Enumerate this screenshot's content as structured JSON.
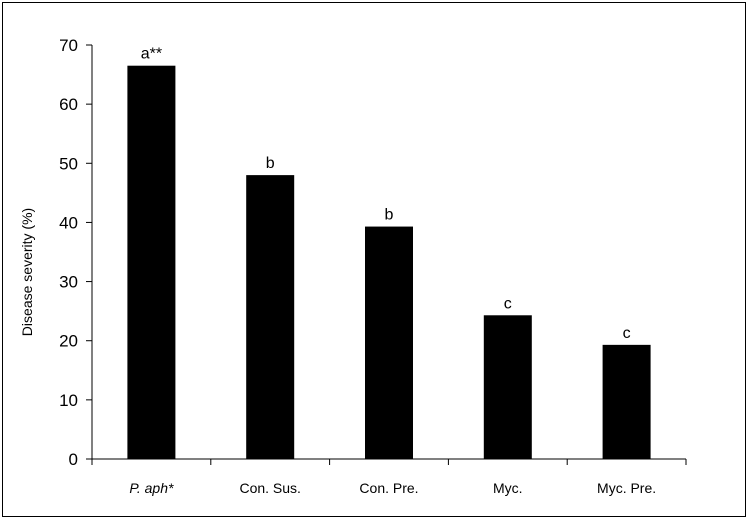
{
  "chart_data": {
    "type": "bar",
    "categories": [
      "P. aph*",
      "Con. Sus.",
      "Con. Pre.",
      "Myc.",
      "Myc. Pre."
    ],
    "values": [
      66.5,
      48,
      39.3,
      24.3,
      19.3
    ],
    "data_labels": [
      "a**",
      "b",
      "b",
      "c",
      "c"
    ],
    "title": "",
    "xlabel": "",
    "ylabel": "Disease severity (%)",
    "ylim": [
      0,
      70
    ],
    "yticks": [
      0,
      10,
      20,
      30,
      40,
      50,
      60,
      70
    ],
    "grid": false,
    "bar_color": "#000000"
  }
}
